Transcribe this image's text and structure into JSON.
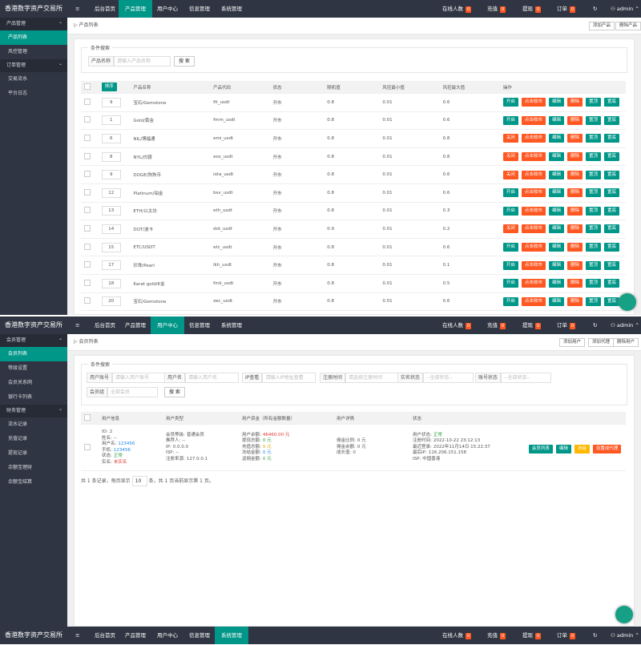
{
  "nav": {
    "logo": "香港数字资产交易所",
    "menu": [
      "后台首页",
      "产品管理",
      "用户中心",
      "信息管理",
      "系统管理"
    ],
    "stats": [
      {
        "label": "在线人数",
        "count": 0
      },
      {
        "label": "充值",
        "count": 0
      },
      {
        "label": "提现",
        "count": 0
      },
      {
        "label": "订单",
        "count": 0
      }
    ],
    "user": "admin"
  },
  "product_page": {
    "active_menu": 1,
    "sidebar": [
      {
        "title": "产品管理",
        "items": [
          "产品列表",
          "风控管理"
        ]
      },
      {
        "title": "订单管理",
        "items": [
          "交易流水",
          "平台日志"
        ]
      }
    ],
    "active_item": "产品列表",
    "breadcrumb": "产品列表",
    "buttons": [
      "添加产品",
      "删除产品"
    ],
    "search": {
      "title": "条件搜索",
      "label": "产品名称",
      "placeholder": "请输入产品名称",
      "button": "搜 索"
    },
    "table": {
      "sort_button": "排序",
      "headers": [
        "产品名称",
        "产品代码",
        "状态",
        "随机值",
        "风控最小值",
        "风控最大值",
        "操作"
      ],
      "actions": [
        "点击收市",
        "编辑",
        "删除",
        "置顶",
        "置底"
      ],
      "rows": [
        {
          "sort": 9,
          "name": "宝石/Gemstone",
          "code": "fit_usdt",
          "status": "开市",
          "random": 0.8,
          "min": 0.01,
          "max": 0.6,
          "toggle": "开启"
        },
        {
          "sort": 1,
          "name": "Gold/黄金",
          "code": "fmm_usdt",
          "status": "开市",
          "random": 0.8,
          "min": 0.01,
          "max": 0.6,
          "toggle": "开启"
        },
        {
          "sort": 6,
          "name": "NIL/博福通",
          "code": "emi_usdt",
          "status": "开市",
          "random": 0.8,
          "min": 0.01,
          "max": 0.8,
          "toggle": "关闭"
        },
        {
          "sort": 8,
          "name": "NYL/白银",
          "code": "eos_usdt",
          "status": "开市",
          "random": 0.8,
          "min": 0.01,
          "max": 0.8,
          "toggle": "关闭"
        },
        {
          "sort": 9,
          "name": "DOGE/狗狗币",
          "code": "iota_usdt",
          "status": "开市",
          "random": 0.8,
          "min": 0.01,
          "max": 0.6,
          "toggle": "关闭"
        },
        {
          "sort": 12,
          "name": "Platinum/铂金",
          "code": "bsv_usdt",
          "status": "开市",
          "random": 0.8,
          "min": 0.01,
          "max": 0.6,
          "toggle": "开启"
        },
        {
          "sort": 13,
          "name": "ETH/以太坊",
          "code": "eth_usdt",
          "status": "开市",
          "random": 0.8,
          "min": 0.01,
          "max": 0.3,
          "toggle": "开启"
        },
        {
          "sort": 14,
          "name": "DOT/波卡",
          "code": "dot_usdt",
          "status": "开市",
          "random": 0.9,
          "min": 0.01,
          "max": 0.2,
          "toggle": "关闭"
        },
        {
          "sort": 15,
          "name": "ETC/USDT",
          "code": "etc_usdt",
          "status": "开市",
          "random": 0.8,
          "min": 0.01,
          "max": 0.6,
          "toggle": "开启"
        },
        {
          "sort": 17,
          "name": "珍珠/Pearl",
          "code": "lkh_usdt",
          "status": "开市",
          "random": 0.8,
          "min": 0.01,
          "max": 0.1,
          "toggle": "开启"
        },
        {
          "sort": 18,
          "name": "Karat gold/K金",
          "code": "fmk_usdt",
          "status": "开市",
          "random": 0.8,
          "min": 0.01,
          "max": 0.5,
          "toggle": "开启"
        },
        {
          "sort": 20,
          "name": "宝石/Gemstone",
          "code": "zec_usdt",
          "status": "开市",
          "random": 0.8,
          "min": 0.01,
          "max": 0.6,
          "toggle": "开启"
        }
      ]
    }
  },
  "member_page": {
    "active_menu": 2,
    "sidebar": [
      {
        "title": "会员管理",
        "items": [
          "会员列表",
          "等级设置",
          "会员关系网",
          "银行卡列表"
        ]
      },
      {
        "title": "财务管理",
        "items": [
          "流水记录",
          "充值记录",
          "提现记录",
          "余额宝理财",
          "余额宝结算"
        ]
      }
    ],
    "active_item": "会员列表",
    "breadcrumb": "会员列表",
    "buttons": [
      "添加用户",
      "添加代理",
      "删除用户"
    ],
    "search": {
      "title": "条件搜索",
      "fields": [
        {
          "label": "用户账号",
          "placeholder": "请输入用户账号"
        },
        {
          "label": "用户名",
          "placeholder": "请输入用户名"
        },
        {
          "label": "IP查看",
          "placeholder": "请输入IP地址查看"
        },
        {
          "label": "注册时间",
          "placeholder": "请选择注册时间"
        },
        {
          "label": "实名状态",
          "placeholder": "--全部状态--"
        },
        {
          "label": "账号状态",
          "placeholder": "--全部状态--"
        },
        {
          "label": "会员组",
          "placeholder": "全部会员"
        }
      ],
      "button": "搜 索"
    },
    "table": {
      "headers": [
        "用户信息",
        "用户类型",
        "用户资金（所有金额数量）",
        "用户详情",
        "状态"
      ],
      "row": {
        "cells": [
          [
            {
              "label": "ID:",
              "value": "2"
            },
            {
              "label": "姓名:",
              "value": "--"
            },
            {
              "label": "用户名:",
              "value": "123456",
              "color": "#1e88e5"
            },
            {
              "label": "手机:",
              "value": "123456",
              "color": "#1e88e5"
            },
            {
              "label": "状态:",
              "value": "正常",
              "color": "#2e9e3e"
            },
            {
              "label": "实名:",
              "value": "未实名",
              "color": "#e53935"
            }
          ],
          [
            {
              "label": "会员等级:",
              "value": "普通会员"
            },
            {
              "label": "推荐人:",
              "value": "--"
            },
            {
              "label": "IP:",
              "value": "0.0.0.0"
            },
            {
              "label": "ISP:",
              "value": "--"
            },
            {
              "label": "注册来源:",
              "value": "127.0.0.1"
            }
          ],
          [
            {
              "label": "用户余额:",
              "value": "46460.00 元",
              "color": "#e53935"
            },
            {
              "label": "提现总额:",
              "value": "0 元",
              "color": "#2e9e3e"
            },
            {
              "label": "充值总额:",
              "value": "0 元",
              "color": "#e0a800"
            },
            {
              "label": "冻结金额:",
              "value": "0 元",
              "color": "#1e88e5"
            },
            {
              "label": "返佣金额:",
              "value": "0 元",
              "color": "#2e9e3e"
            }
          ],
          [
            {
              "label": "佣金比例:",
              "value": "0 元"
            },
            {
              "label": "佣金余额:",
              "value": "0 元"
            },
            {
              "label": "成长值:",
              "value": "0"
            }
          ],
          [
            {
              "label": "用户状态:",
              "value": "正常",
              "color": "#2e9e3e"
            },
            {
              "label": "注册时间:",
              "value": "2022-10-22 23:12:13"
            },
            {
              "label": "最近登录:",
              "value": "2022年11月14日 15:22:37"
            },
            {
              "label": "最后IP:",
              "value": "116.206.151.158"
            },
            {
              "label": "ISP:",
              "value": "中国香港"
            }
          ]
        ],
        "buttons": [
          "会员列表",
          "编辑",
          "冻结"
        ],
        "agent_button": "设置成代理"
      }
    },
    "footer": {
      "before": "共 1 条记录，每页显示",
      "page_size": "10",
      "after": "条，共 1 页当前显示第 1 页。"
    }
  },
  "system_page": {
    "active_menu": 4
  }
}
